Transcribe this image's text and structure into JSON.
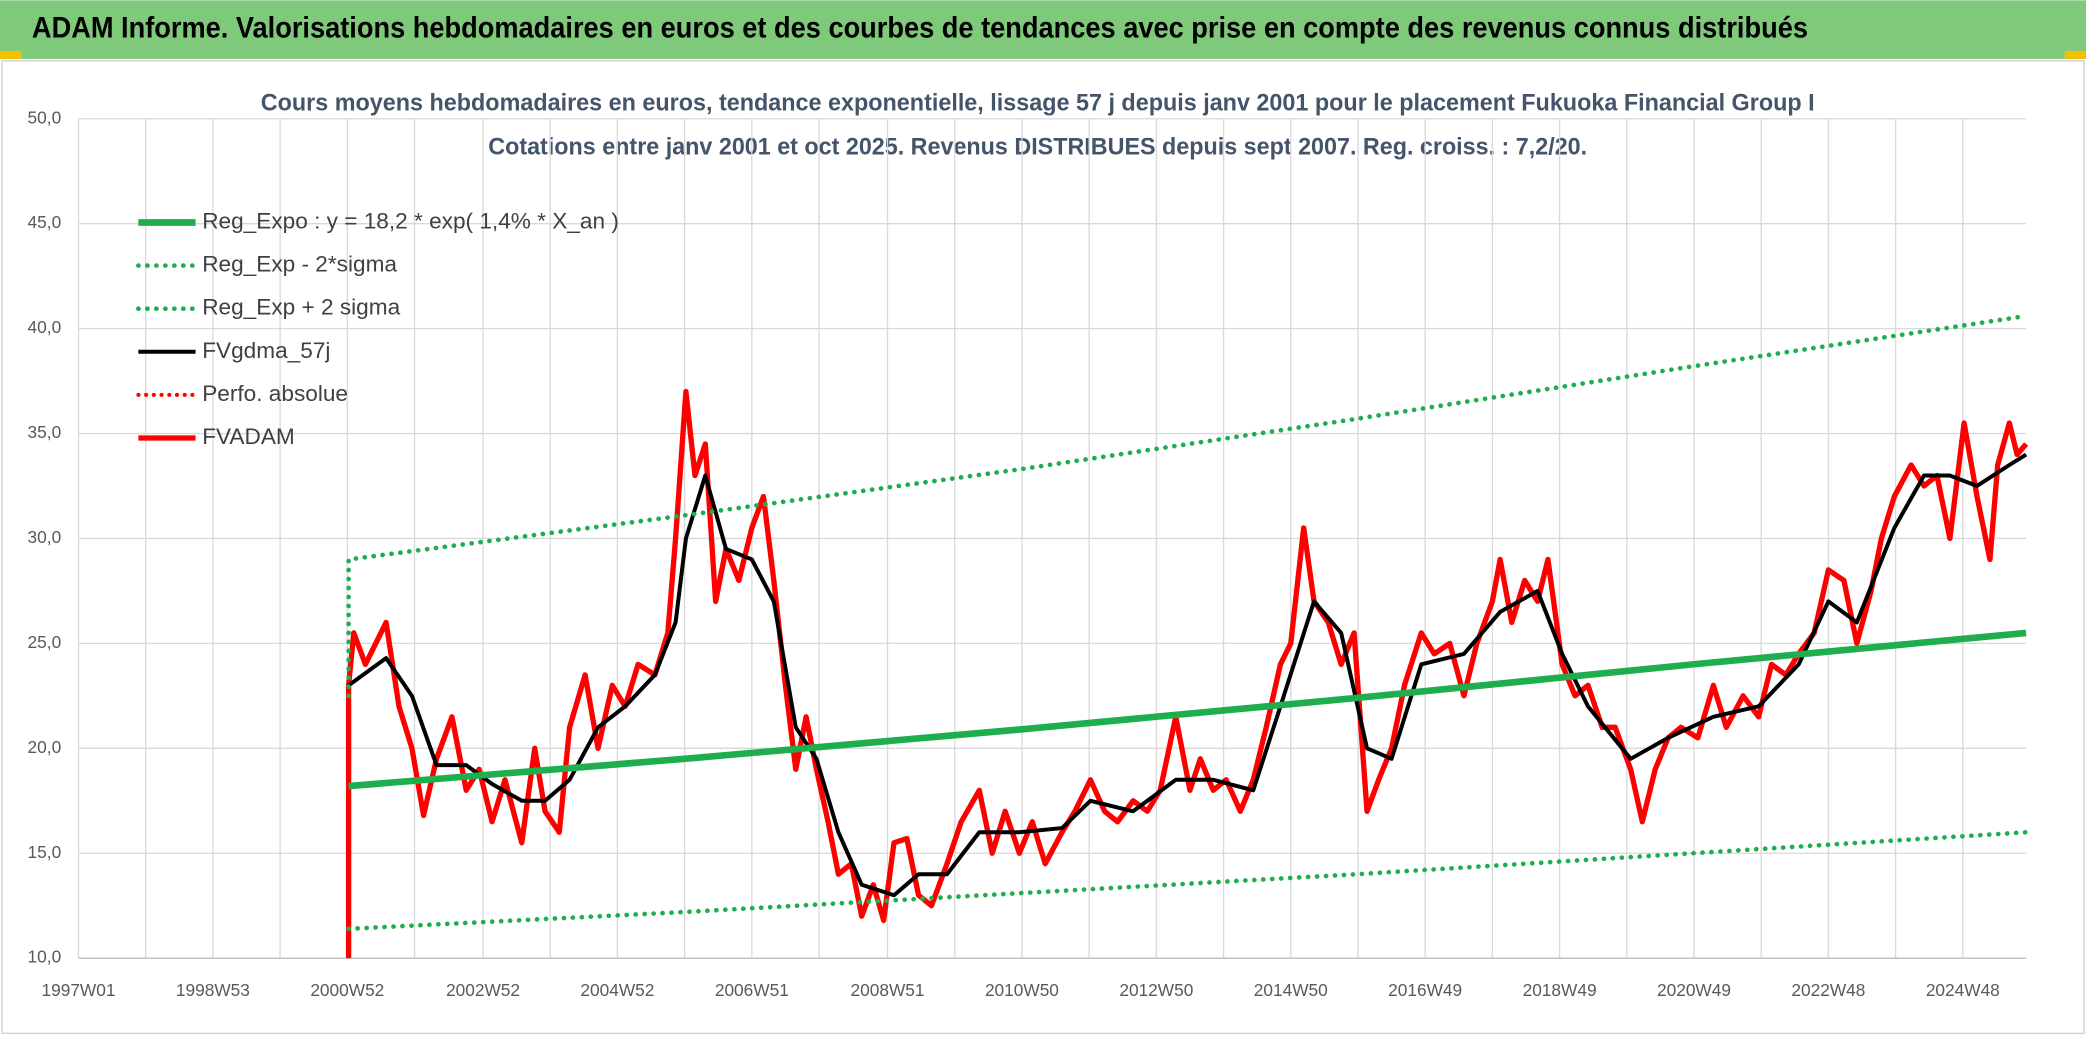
{
  "header": "ADAM Informe. Valorisations hebdomadaires en euros et des courbes de tendances avec prise en compte des revenus connus distribués",
  "chart_data": {
    "type": "line",
    "title": "Cours moyens hebdomadaires en euros, tendance exponentielle, lissage 57 j depuis janv 2001 pour le placement Fukuoka Financial Group I",
    "subtitle": "Cotations entre janv 2001 et oct 2025. Revenus DISTRIBUES depuis sept 2007. Reg. croiss. : 7,2/20.",
    "xlim": [
      0,
      1507
    ],
    "xticks": [
      {
        "value": 0,
        "label": "1997W01"
      },
      {
        "value": 104,
        "label": "1998W53"
      },
      {
        "value": 208,
        "label": "2000W52"
      },
      {
        "value": 313,
        "label": "2002W52"
      },
      {
        "value": 417,
        "label": "2004W52"
      },
      {
        "value": 521,
        "label": "2006W51"
      },
      {
        "value": 626,
        "label": "2008W51"
      },
      {
        "value": 730,
        "label": "2010W50"
      },
      {
        "value": 834,
        "label": "2012W50"
      },
      {
        "value": 938,
        "label": "2014W50"
      },
      {
        "value": 1042,
        "label": "2016W49"
      },
      {
        "value": 1146,
        "label": "2018W49"
      },
      {
        "value": 1250,
        "label": "2020W49"
      },
      {
        "value": 1354,
        "label": "2022W48"
      },
      {
        "value": 1458,
        "label": "2024W48"
      }
    ],
    "xminorticks": [
      52,
      156,
      260,
      365,
      469,
      573,
      678,
      782,
      886,
      990,
      1094,
      1198,
      1302,
      1406
    ],
    "ylim": [
      10,
      50
    ],
    "yticks": [
      {
        "value": 10,
        "label": "10,0"
      },
      {
        "value": 15,
        "label": "15,0"
      },
      {
        "value": 20,
        "label": "20,0"
      },
      {
        "value": 25,
        "label": "25,0"
      },
      {
        "value": 30,
        "label": "30,0"
      },
      {
        "value": 35,
        "label": "35,0"
      },
      {
        "value": 40,
        "label": "40,0"
      },
      {
        "value": 45,
        "label": "45,0"
      },
      {
        "value": 50,
        "label": "50,0"
      }
    ],
    "grid": true,
    "legend": "upper left",
    "series": [
      {
        "name": "Reg_Expo : y = 18,2 * exp( 1,4% *  X_an )",
        "color": "#1fae4e",
        "style": "solid",
        "width": 5,
        "x": [
          209,
          469,
          729,
          989,
          1249,
          1507
        ],
        "values": [
          18.2,
          19.5,
          20.9,
          22.4,
          24.0,
          25.5
        ]
      },
      {
        "name": "Reg_Exp - 2*sigma",
        "color": "#1fae4e",
        "style": "dotted",
        "width": 3.5,
        "x": [
          209,
          469,
          729,
          989,
          1249,
          1507
        ],
        "values": [
          11.4,
          12.2,
          13.1,
          14.0,
          15.0,
          16.0
        ]
      },
      {
        "name": "Reg_Exp + 2 sigma",
        "color": "#1fae4e",
        "style": "dotted",
        "width": 3.5,
        "x": [
          209,
          209,
          469,
          729,
          989,
          1249,
          1507
        ],
        "values": [
          22.5,
          29.0,
          31.1,
          33.3,
          35.7,
          38.2,
          40.6
        ]
      },
      {
        "name": "FVgdma_57j",
        "color": "#000000",
        "style": "solid",
        "width": 3,
        "x": [
          209,
          238,
          258,
          277,
          300,
          320,
          343,
          361,
          380,
          402,
          423,
          446,
          462,
          470,
          485,
          501,
          521,
          538,
          555,
          571,
          588,
          606,
          631,
          650,
          672,
          697,
          728,
          761,
          783,
          816,
          849,
          878,
          909,
          930,
          956,
          977,
          997,
          1016,
          1039,
          1072,
          1100,
          1129,
          1148,
          1168,
          1201,
          1230,
          1265,
          1300,
          1331,
          1354,
          1376,
          1405,
          1428,
          1448,
          1469,
          1494,
          1507
        ],
        "values": [
          23,
          24.3,
          22.5,
          19.2,
          19.2,
          18.3,
          17.5,
          17.5,
          18.5,
          21,
          22,
          23.5,
          26,
          30,
          33,
          29.5,
          29,
          27,
          21,
          19.5,
          16,
          13.5,
          13,
          14,
          14,
          16,
          16,
          16.2,
          17.5,
          17,
          18.5,
          18.5,
          18,
          22,
          27,
          25.5,
          20,
          19.5,
          24,
          24.5,
          26.5,
          27.5,
          24.5,
          22,
          19.5,
          20.5,
          21.5,
          22,
          24,
          27,
          26,
          30.5,
          33,
          33,
          32.5,
          33.5,
          34
        ]
      },
      {
        "name": "Perfo. absolue",
        "color": "#ff0000",
        "style": "dotted",
        "width": 3,
        "x": [],
        "values": []
      },
      {
        "name": "FVADAM",
        "color": "#ff0000",
        "style": "solid",
        "width": 4,
        "x": [
          209,
          209,
          213,
          222,
          238,
          248,
          258,
          267,
          277,
          289,
          300,
          310,
          320,
          330,
          343,
          353,
          361,
          372,
          380,
          392,
          402,
          413,
          423,
          433,
          446,
          456,
          462,
          470,
          477,
          485,
          493,
          501,
          511,
          521,
          530,
          538,
          547,
          555,
          563,
          571,
          580,
          588,
          598,
          606,
          615,
          623,
          631,
          641,
          650,
          660,
          672,
          683,
          697,
          707,
          717,
          728,
          738,
          748,
          761,
          771,
          783,
          794,
          804,
          816,
          827,
          837,
          849,
          860,
          868,
          878,
          888,
          899,
          909,
          919,
          930,
          938,
          948,
          956,
          967,
          977,
          987,
          997,
          1006,
          1016,
          1026,
          1039,
          1049,
          1061,
          1072,
          1082,
          1094,
          1100,
          1109,
          1119,
          1129,
          1137,
          1148,
          1158,
          1168,
          1179,
          1189,
          1201,
          1210,
          1220,
          1230,
          1240,
          1253,
          1265,
          1275,
          1288,
          1300,
          1310,
          1321,
          1331,
          1343,
          1354,
          1366,
          1376,
          1387,
          1395,
          1405,
          1418,
          1428,
          1438,
          1448,
          1459,
          1469,
          1479,
          1485,
          1494,
          1500,
          1507
        ],
        "values": [
          10,
          23,
          25.5,
          24,
          26,
          22,
          20,
          16.8,
          19.5,
          21.5,
          18,
          19,
          16.5,
          18.5,
          15.5,
          20,
          17,
          16,
          21,
          23.5,
          20,
          23,
          22,
          24,
          23.5,
          25.5,
          30,
          37,
          33,
          34.5,
          27,
          29.5,
          28,
          30.5,
          32,
          28,
          23,
          19,
          21.5,
          19,
          16.5,
          14,
          14.5,
          12,
          13.5,
          11.8,
          15.5,
          15.7,
          13,
          12.5,
          14.5,
          16.5,
          18,
          15,
          17,
          15,
          16.5,
          14.5,
          16,
          17,
          18.5,
          17,
          16.5,
          17.5,
          17,
          18,
          21.5,
          18,
          19.5,
          18,
          18.5,
          17,
          18.5,
          21,
          24,
          25,
          30.5,
          27,
          26,
          24,
          25.5,
          17,
          18.5,
          20,
          23,
          25.5,
          24.5,
          25,
          22.5,
          25,
          27,
          29,
          26,
          28,
          27,
          29,
          24,
          22.5,
          23,
          21,
          21,
          19,
          16.5,
          19,
          20.5,
          21,
          20.5,
          23,
          21,
          22.5,
          21.5,
          24,
          23.5,
          24.5,
          25.5,
          28.5,
          28,
          25,
          27.5,
          30,
          32,
          33.5,
          32.5,
          33,
          30,
          35.5,
          32,
          29,
          33.5,
          35.5,
          34,
          34.5
        ]
      }
    ]
  }
}
